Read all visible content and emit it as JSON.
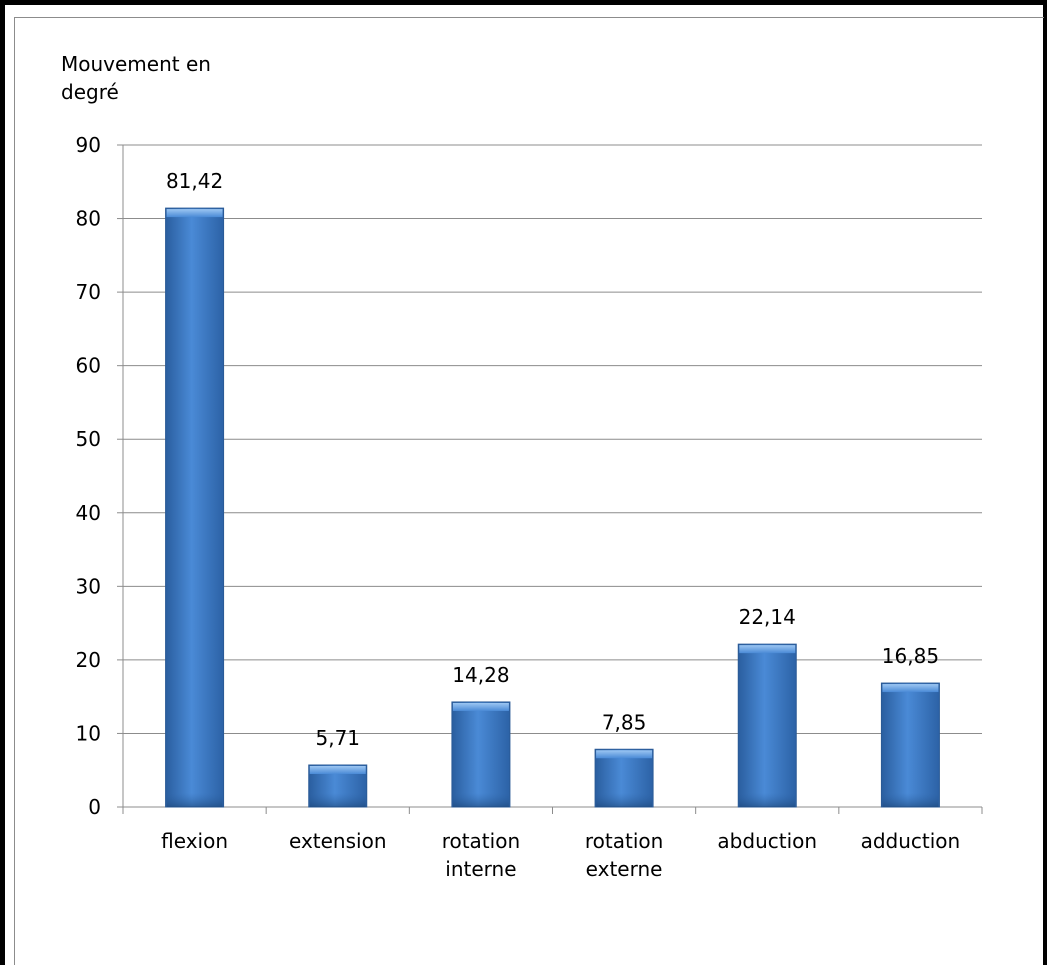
{
  "chart_data": {
    "type": "bar",
    "ylabel_line1": "Mouvement en",
    "ylabel_line2": "degré",
    "xlabel": "",
    "ylim": [
      0,
      90
    ],
    "yticks": [
      0,
      10,
      20,
      30,
      40,
      50,
      60,
      70,
      80,
      90
    ],
    "grid": true,
    "categories": [
      [
        "flexion"
      ],
      [
        "extension"
      ],
      [
        "rotation",
        "interne"
      ],
      [
        "rotation",
        "externe"
      ],
      [
        "abduction"
      ],
      [
        "adduction"
      ]
    ],
    "values": [
      81.42,
      5.71,
      14.28,
      7.85,
      22.14,
      16.85
    ],
    "data_labels": [
      "81,42",
      "5,71",
      "14,28",
      "7,85",
      "22,14",
      "16,85"
    ],
    "bar_color": "#3c78c4"
  }
}
